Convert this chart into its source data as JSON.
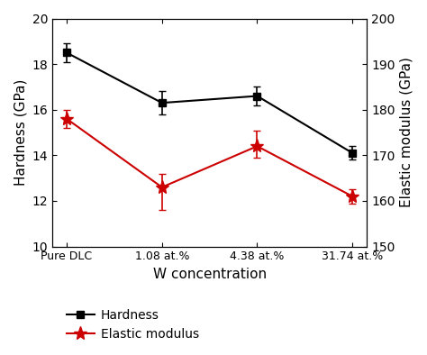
{
  "x_labels": [
    "Pure DLC",
    "1.08 at.%",
    "4.38 at.%",
    "31.74 at.%"
  ],
  "x_positions": [
    0,
    1,
    2,
    3
  ],
  "hardness_values": [
    18.5,
    16.3,
    16.6,
    14.1
  ],
  "hardness_yerr": [
    0.4,
    0.5,
    0.4,
    0.3
  ],
  "elastic_values": [
    178,
    163,
    172,
    161
  ],
  "elastic_yerr_upper": [
    2.0,
    3.0,
    3.5,
    1.5
  ],
  "elastic_yerr_lower": [
    2.0,
    5.0,
    2.5,
    1.5
  ],
  "hardness_color": "#000000",
  "elastic_color": "#cc0000",
  "hardness_label": "Hardness",
  "elastic_label": "Elastic modulus",
  "xlabel": "W concentration",
  "ylabel_left": "Hardness (GPa)",
  "ylabel_right": "Elastic modulus (GPa)",
  "ylim_left": [
    10,
    20
  ],
  "ylim_right": [
    150,
    200
  ],
  "yticks_left": [
    10,
    12,
    14,
    16,
    18,
    20
  ],
  "yticks_right": [
    150,
    160,
    170,
    180,
    190,
    200
  ],
  "background_color": "#ffffff",
  "figure_width": 4.74,
  "figure_height": 3.94,
  "dpi": 100
}
